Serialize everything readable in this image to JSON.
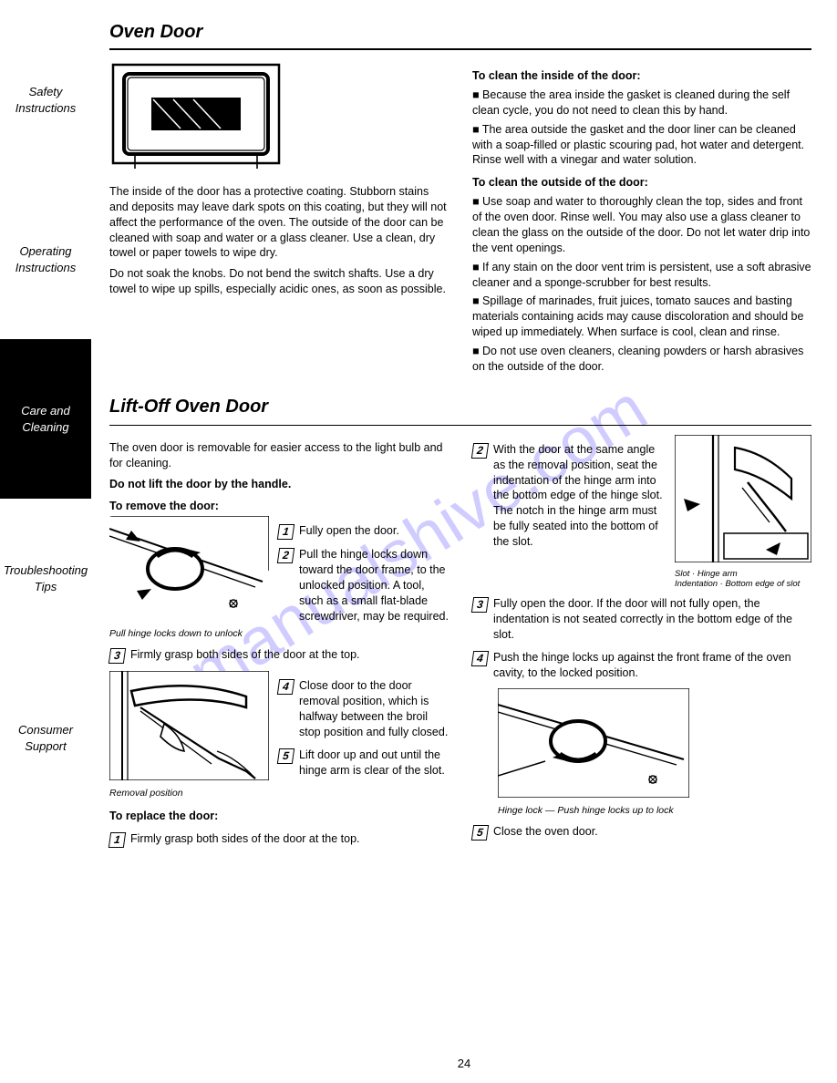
{
  "sidebar": {
    "tabs": [
      {
        "label": "Safety\nInstructions"
      },
      {
        "label": "Operating\nInstructions"
      },
      {
        "label": "Care and\nCleaning"
      },
      {
        "label": "Troubleshooting\nTips"
      },
      {
        "label": "Consumer\nSupport"
      }
    ]
  },
  "watermark": "manualshive.com",
  "door_section": {
    "title": "Oven Door",
    "para1": "The inside of the door has a protective coating. Stubborn stains and deposits may leave dark spots on this coating, but they will not affect the performance of the oven. The outside of the door can be cleaned with soap and water or a glass cleaner. Use a clean, dry towel or paper towels to wipe dry.",
    "para2": "Do not soak the knobs. Do not bend the switch shafts. Use a dry towel to wipe up spills, especially acidic ones, as soon as possible.",
    "subhead1": "To clean the inside of the door:",
    "bullets1": [
      "Because the area inside the gasket is cleaned during the self clean cycle, you do not need to clean this by hand.",
      "The area outside the gasket and the door liner can be cleaned with a soap-filled or plastic scouring pad, hot water and detergent. Rinse well with a vinegar and water solution."
    ],
    "subhead2": "To clean the outside of the door:",
    "bullets2": [
      "Use soap and water to thoroughly clean the top, sides and front of the oven door. Rinse well. You may also use a glass cleaner to clean the glass on the outside of the door. Do not let water drip into the vent openings.",
      "If any stain on the door vent trim is persistent, use a soft abrasive cleaner and a sponge-scrubber for best results.",
      "Spillage of marinades, fruit juices, tomato sauces and basting materials containing acids may cause discoloration and should be wiped up immediately. When surface is cool, clean and rinse.",
      "Do not use oven cleaners, cleaning powders or harsh abrasives on the outside of the door."
    ]
  },
  "lift_section": {
    "title": "Lift-Off Oven Door",
    "intro": "The oven door is removable for easier access to the light bulb and for cleaning.",
    "warn": "Do not lift the door by the handle.",
    "remove_head": "To remove the door:",
    "remove_steps": [
      "Fully open the door.",
      "Pull the hinge locks down toward the door frame, to the unlocked position. A tool, such as a small flat-blade screwdriver, may be required.",
      "Firmly grasp both sides of the door at the top.",
      "Close door to the door removal position, which is halfway between the broil stop position and fully closed.",
      "Lift door up and out until the hinge arm is clear of the slot."
    ],
    "replace_head": "To replace the door:",
    "replace_steps": [
      "Firmly grasp both sides of the door at the top.",
      "With the door at the same angle as the removal position, seat the indentation of the hinge arm into the bottom edge of the hinge slot. The notch in the hinge arm must be fully seated into the bottom of the slot.",
      "Fully open the door. If the door will not fully open, the indentation is not seated correctly in the bottom edge of the slot.",
      "Push the hinge locks up against the front frame of the oven cavity, to the locked position.",
      "Close the oven door."
    ],
    "fig1_caption_a": "Pull hinge locks down to unlock",
    "fig1_label_lock": "Hinge lock",
    "fig2_caption": "Removal position",
    "fig3_label_slot": "Slot",
    "fig3_label_arm": "Hinge arm",
    "fig3_label_ind": "Indentation",
    "fig3_label_bottom": "Bottom edge of slot",
    "fig4_caption": "Push hinge locks up to lock",
    "fig4_label": "Hinge lock"
  },
  "page_number": "24"
}
